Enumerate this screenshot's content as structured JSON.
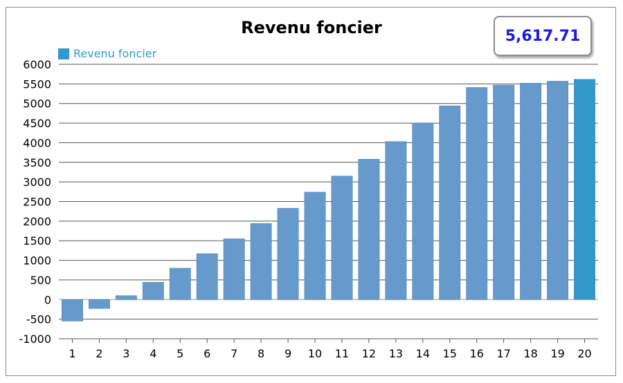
{
  "chart_data": {
    "type": "bar",
    "title": "Revenu foncier",
    "highlight_value": "5,617.71",
    "xlabel": "",
    "ylabel": "",
    "ylim": [
      -1000,
      6000
    ],
    "yticks": [
      6000,
      5500,
      5000,
      4500,
      4000,
      3500,
      3000,
      2500,
      2000,
      1500,
      1000,
      500,
      0,
      -500,
      -1000
    ],
    "grid": true,
    "legend_position": "top-left",
    "categories": [
      "1",
      "2",
      "3",
      "4",
      "5",
      "6",
      "7",
      "8",
      "9",
      "10",
      "11",
      "12",
      "13",
      "14",
      "15",
      "16",
      "17",
      "18",
      "19",
      "20"
    ],
    "series": [
      {
        "name": "Revenu foncier",
        "color": "#3399cc",
        "values": [
          -550,
          -230,
          100,
          440,
          800,
          1170,
          1550,
          1940,
          2330,
          2740,
          3150,
          3580,
          4030,
          4500,
          4940,
          5410,
          5470,
          5520,
          5570,
          5617.71
        ]
      }
    ],
    "bar_colors": {
      "default": "#6699cc",
      "highlight": "#3399cc"
    },
    "highlight_index": 19
  }
}
